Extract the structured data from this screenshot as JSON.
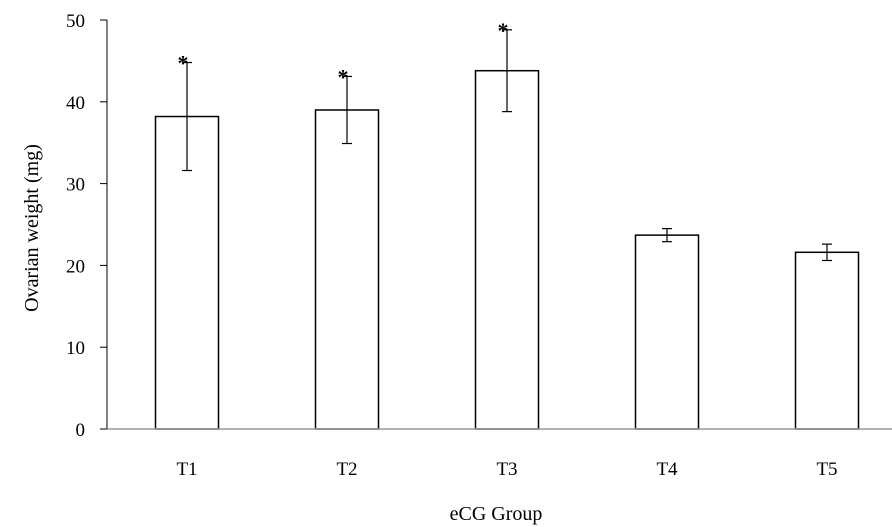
{
  "chart_data": {
    "type": "bar",
    "title": "",
    "xlabel": "eCG Group",
    "ylabel": "Ovarian weight (mg)",
    "ylim": [
      0,
      50
    ],
    "yticks": [
      0,
      10,
      20,
      30,
      40,
      50
    ],
    "categories": [
      "T1",
      "T2",
      "T3",
      "T4",
      "T5"
    ],
    "values": [
      38.2,
      39.0,
      43.8,
      23.7,
      21.6
    ],
    "errors": [
      6.6,
      4.1,
      5.0,
      0.8,
      1.0
    ],
    "annotations": [
      "*",
      "*",
      "*",
      "",
      ""
    ],
    "grid": false,
    "legend": "none",
    "bar_fill": "#ffffff",
    "bar_stroke": "#000000"
  }
}
